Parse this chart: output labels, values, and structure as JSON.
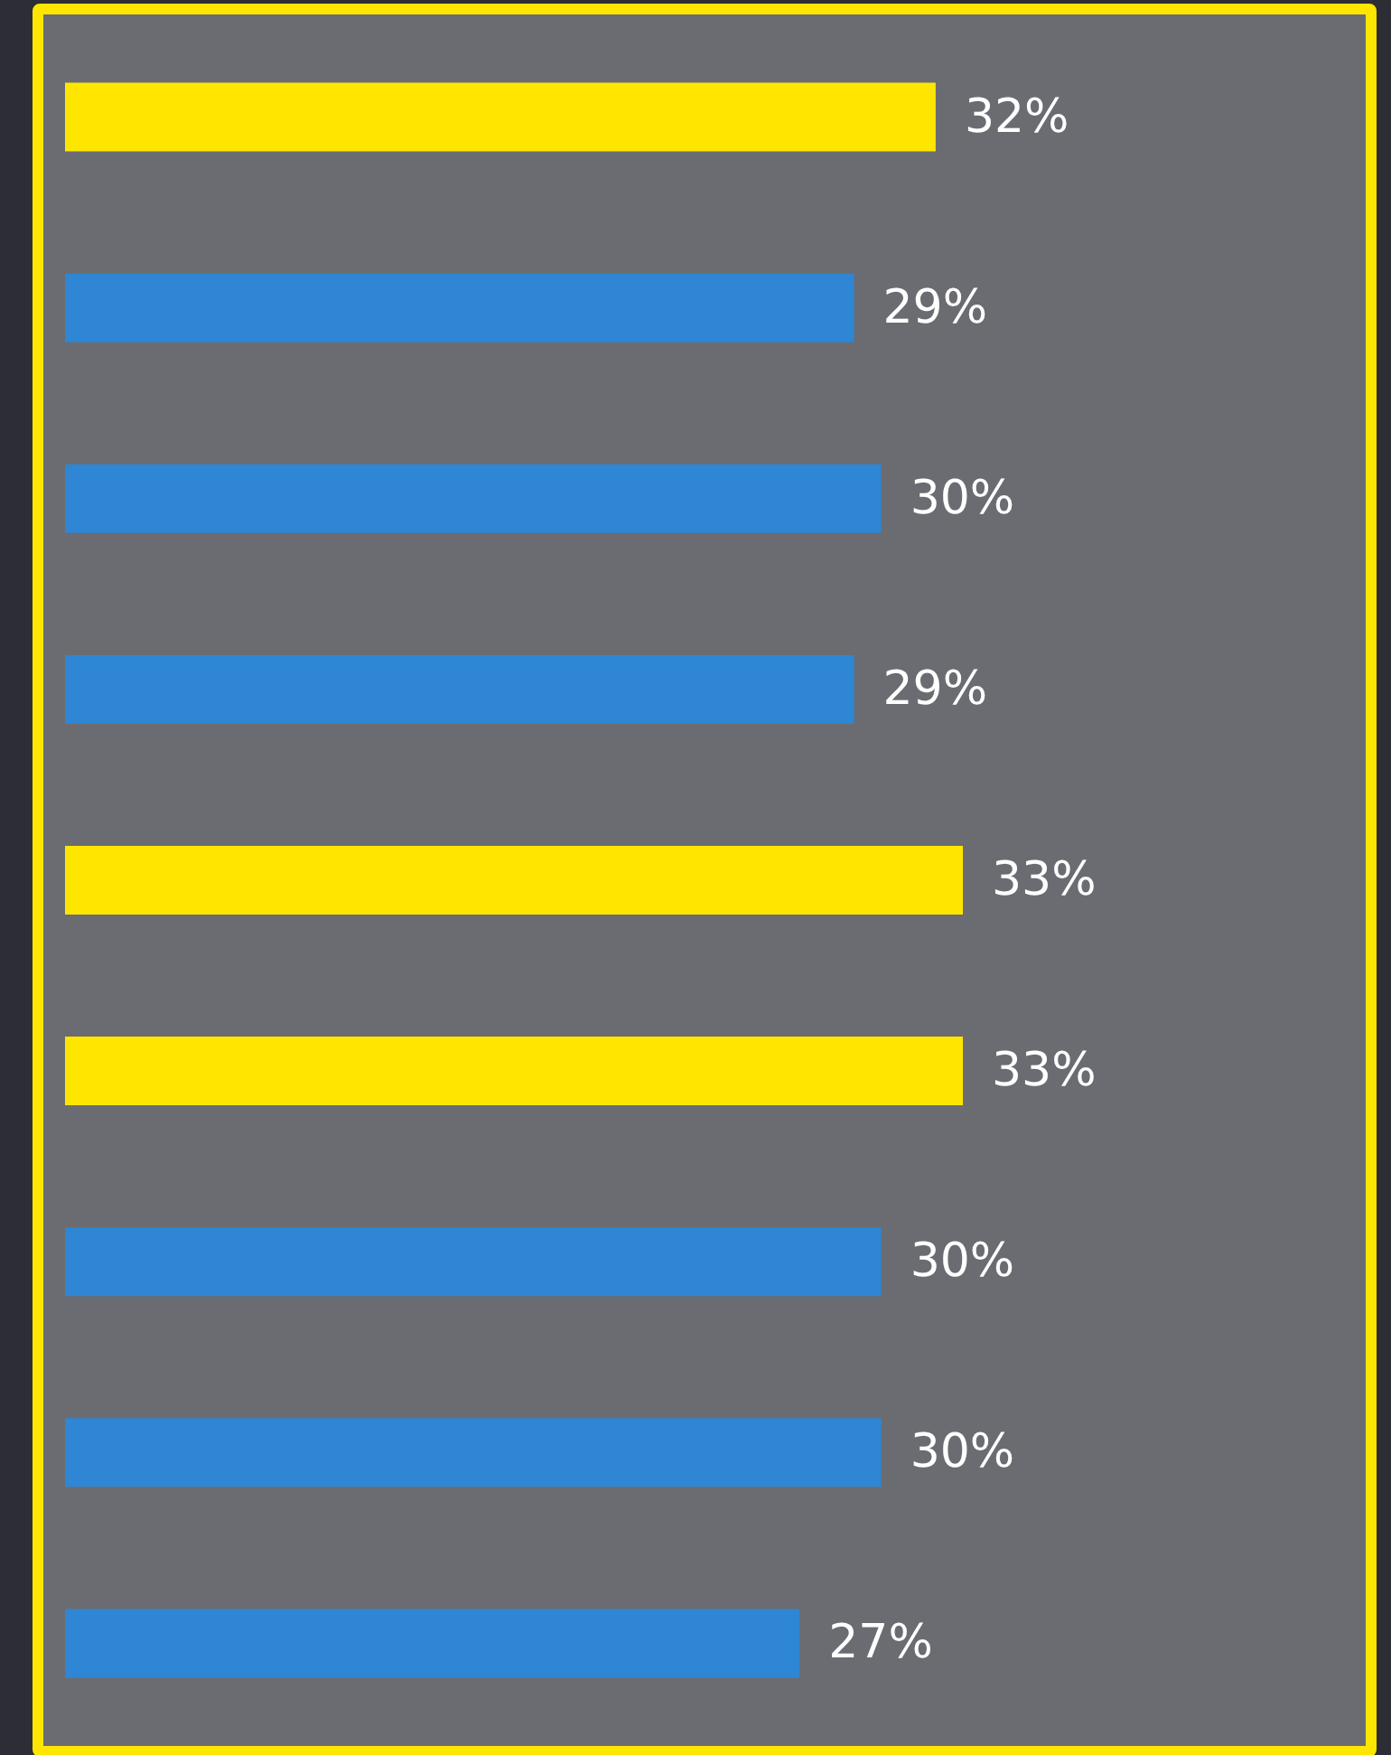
{
  "chart_data": {
    "type": "bar",
    "orientation": "horizontal",
    "categories": [
      null,
      null,
      null,
      null,
      null,
      null,
      null,
      null,
      null
    ],
    "values": [
      32,
      29,
      30,
      29,
      33,
      33,
      30,
      30,
      27
    ],
    "colors": [
      "#ffe600",
      "#2e86d4",
      "#2e86d4",
      "#2e86d4",
      "#ffe600",
      "#ffe600",
      "#2e86d4",
      "#2e86d4",
      "#2e86d4"
    ],
    "value_labels": [
      "32%",
      "29%",
      "30%",
      "29%",
      "33%",
      "33%",
      "30%",
      "30%",
      "27%"
    ]
  }
}
